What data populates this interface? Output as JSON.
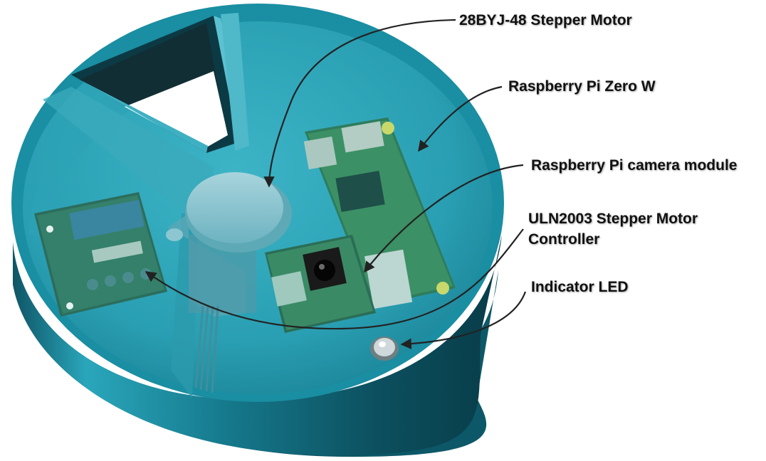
{
  "labels": {
    "stepper_motor": "28BYJ-48 Stepper Motor",
    "pi_zero": "Raspberry Pi Zero W",
    "camera_module": "Raspberry Pi camera module",
    "motor_controller_line1": "ULN2003 Stepper Motor",
    "motor_controller_line2": "Controller",
    "indicator_led": "Indicator LED"
  },
  "colors": {
    "enclosure": "#1f8fa3",
    "enclosure_dark": "#0f5f70",
    "pcb_green": "#3c8c62",
    "arrow": "#222222",
    "label_text": "#111111"
  }
}
